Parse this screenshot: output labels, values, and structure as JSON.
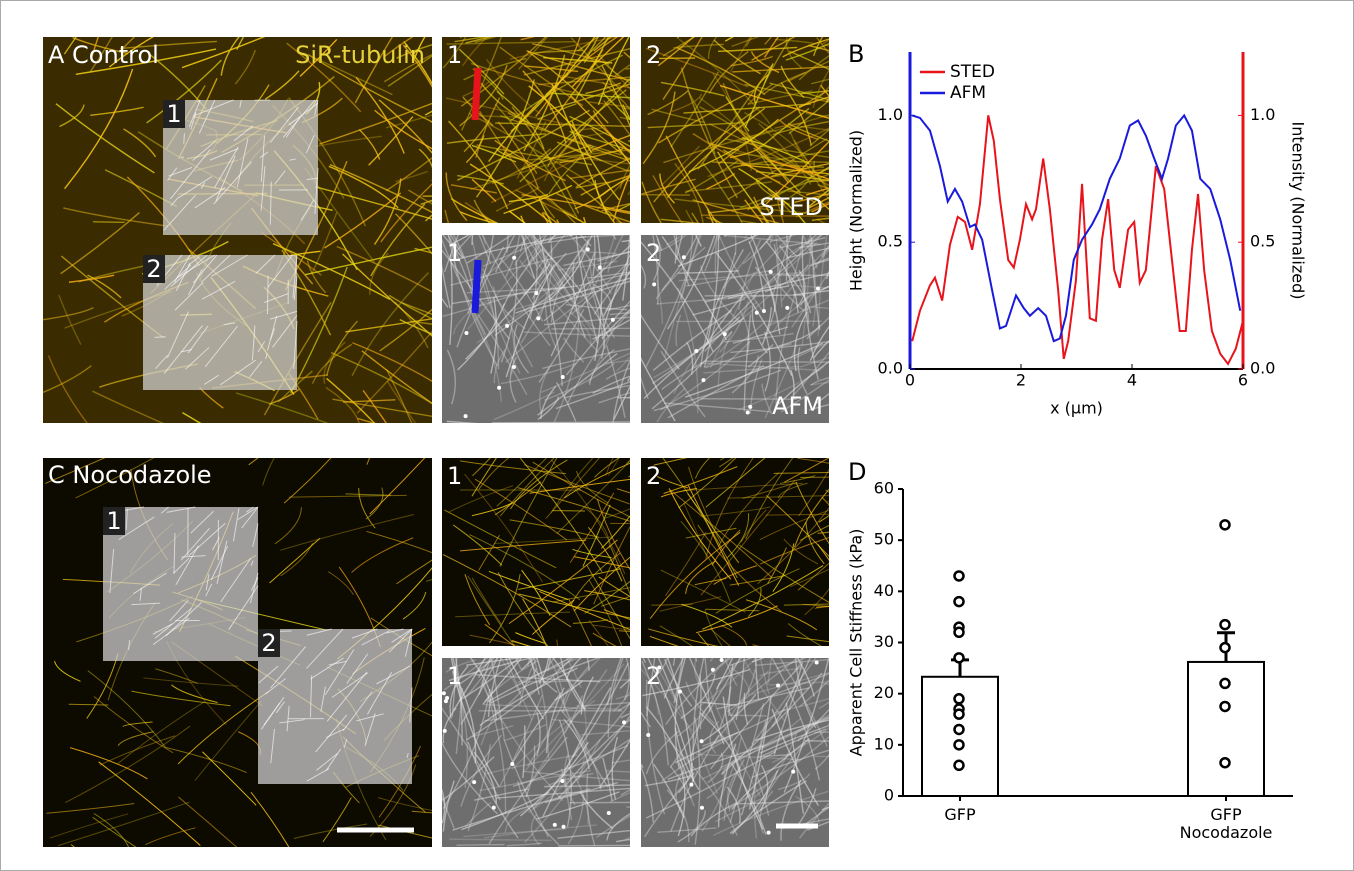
{
  "images": {
    "a_title": "A Control",
    "a_stain": "SiR-tubulin",
    "a_roi": [
      "1",
      "2"
    ],
    "a_sted": [
      "1",
      "2"
    ],
    "sted_label": "STED",
    "a_afm": [
      "1",
      "2"
    ],
    "afm_label": "AFM",
    "c_title": "C Nocodazole",
    "c_roi": [
      "1",
      "2"
    ],
    "c_sted": [
      "1",
      "2"
    ],
    "c_afm": [
      "1",
      "2"
    ]
  },
  "chart_data": [
    {
      "type": "line",
      "panel": "B",
      "xlabel": "x (µm)",
      "ylabel": "Height (Normalized)",
      "y2label": "Intensity (Normalized)",
      "xlim": [
        0,
        6
      ],
      "xticks": [
        0,
        2,
        4,
        6
      ],
      "ylim": [
        0,
        1.25
      ],
      "yticks": [
        {
          "value": 0,
          "label": "0.0"
        },
        0.5,
        {
          "value": 1,
          "label": "1.0"
        }
      ],
      "y2lim": [
        0,
        1.25
      ],
      "y2ticks": [
        {
          "value": 0,
          "label": "0.0"
        },
        0.5,
        {
          "value": 1,
          "label": "1.0"
        }
      ],
      "legend": "top-left",
      "series": [
        {
          "name": "STED",
          "color": "#e8141b",
          "axis": "y2",
          "x": [
            0.04,
            0.18,
            0.36,
            0.45,
            0.58,
            0.72,
            0.86,
            0.99,
            1.12,
            1.26,
            1.41,
            1.51,
            1.62,
            1.77,
            1.87,
            1.98,
            2.09,
            2.2,
            2.27,
            2.4,
            2.52,
            2.67,
            2.77,
            2.85,
            2.99,
            3.1,
            3.24,
            3.35,
            3.46,
            3.57,
            3.68,
            3.78,
            3.93,
            4.04,
            4.14,
            4.25,
            4.43,
            4.58,
            4.72,
            4.86,
            4.97,
            5.08,
            5.19,
            5.3,
            5.44,
            5.59,
            5.73,
            5.87,
            6.0
          ],
          "values": [
            0.11,
            0.23,
            0.33,
            0.36,
            0.27,
            0.49,
            0.6,
            0.58,
            0.47,
            0.65,
            1.0,
            0.9,
            0.67,
            0.43,
            0.4,
            0.51,
            0.65,
            0.59,
            0.63,
            0.83,
            0.63,
            0.31,
            0.04,
            0.11,
            0.35,
            0.73,
            0.2,
            0.19,
            0.51,
            0.67,
            0.39,
            0.32,
            0.55,
            0.58,
            0.34,
            0.39,
            0.8,
            0.71,
            0.43,
            0.15,
            0.15,
            0.47,
            0.69,
            0.39,
            0.15,
            0.06,
            0.02,
            0.08,
            0.19
          ]
        },
        {
          "name": "AFM",
          "color": "#1a1adc",
          "axis": "y",
          "x": [
            0.04,
            0.18,
            0.36,
            0.54,
            0.68,
            0.81,
            0.94,
            1.08,
            1.17,
            1.3,
            1.48,
            1.62,
            1.73,
            1.91,
            2.05,
            2.16,
            2.31,
            2.45,
            2.59,
            2.7,
            2.81,
            2.95,
            3.1,
            3.28,
            3.42,
            3.6,
            3.78,
            3.96,
            4.11,
            4.25,
            4.4,
            4.54,
            4.65,
            4.79,
            4.94,
            5.08,
            5.23,
            5.41,
            5.59,
            5.77,
            5.95
          ],
          "values": [
            1.0,
            0.99,
            0.94,
            0.8,
            0.66,
            0.71,
            0.66,
            0.56,
            0.57,
            0.51,
            0.31,
            0.16,
            0.17,
            0.29,
            0.24,
            0.21,
            0.24,
            0.21,
            0.11,
            0.12,
            0.21,
            0.43,
            0.51,
            0.57,
            0.63,
            0.75,
            0.83,
            0.96,
            0.98,
            0.92,
            0.83,
            0.75,
            0.83,
            0.96,
            1.0,
            0.94,
            0.75,
            0.71,
            0.59,
            0.43,
            0.23
          ]
        }
      ]
    },
    {
      "type": "bar",
      "panel": "D",
      "ylabel": "Apparent Cell Stiffness (kPa)",
      "categories": [
        "GFP",
        "GFP\nNocodazole"
      ],
      "values": [
        23.3,
        26.2
      ],
      "errors": [
        3.3,
        5.7
      ],
      "color": "#ffffff",
      "points": [
        [
          43,
          38,
          33,
          32,
          27,
          19,
          17,
          16,
          13,
          10,
          6
        ],
        [
          53,
          33.5,
          29,
          22,
          17.5,
          6.5
        ]
      ],
      "ylim": [
        0,
        60
      ],
      "yticks": [
        0,
        10,
        20,
        30,
        40,
        50,
        60
      ]
    }
  ]
}
